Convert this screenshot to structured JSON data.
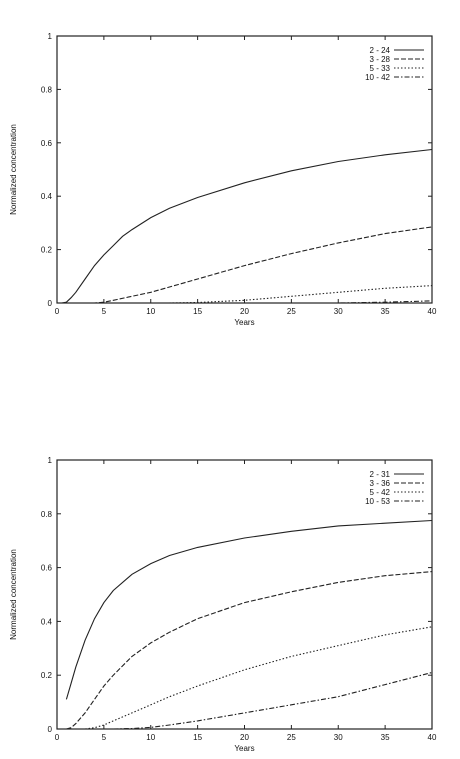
{
  "chart_data": [
    {
      "type": "line",
      "title": "",
      "xlabel": "Years",
      "ylabel": "Normalized concentration",
      "xlim": [
        0,
        40
      ],
      "ylim": [
        0,
        1
      ],
      "xticks": [
        0,
        5,
        10,
        15,
        20,
        25,
        30,
        35,
        40
      ],
      "yticks": [
        0,
        0.2,
        0.4,
        0.6,
        0.8,
        1
      ],
      "ytick_labels": [
        "0",
        "0.2",
        "0.4",
        "0.6",
        "0.8",
        "1"
      ],
      "grid": false,
      "legend_position": "top-right",
      "series": [
        {
          "name": "2 - 24",
          "dash": "solid",
          "x": [
            0,
            0.5,
            1,
            1.5,
            2,
            3,
            4,
            5,
            6,
            7,
            8,
            10,
            12,
            15,
            20,
            25,
            30,
            35,
            40
          ],
          "y": [
            0,
            0,
            0.003,
            0.02,
            0.04,
            0.09,
            0.14,
            0.18,
            0.215,
            0.25,
            0.275,
            0.32,
            0.355,
            0.395,
            0.45,
            0.495,
            0.53,
            0.555,
            0.575
          ]
        },
        {
          "name": "3 - 28",
          "dash": "dashed",
          "x": [
            0,
            4,
            5,
            6,
            8,
            10,
            12,
            15,
            20,
            25,
            30,
            35,
            40
          ],
          "y": [
            0,
            0,
            0.003,
            0.01,
            0.025,
            0.04,
            0.06,
            0.09,
            0.14,
            0.185,
            0.225,
            0.26,
            0.285
          ]
        },
        {
          "name": "5 - 33",
          "dash": "dotted",
          "x": [
            0,
            12,
            15,
            20,
            25,
            30,
            35,
            40
          ],
          "y": [
            0,
            0,
            0.002,
            0.01,
            0.025,
            0.04,
            0.055,
            0.065
          ]
        },
        {
          "name": "10 - 42",
          "dash": "dashdot",
          "x": [
            0,
            30,
            35,
            40
          ],
          "y": [
            0,
            0,
            0.003,
            0.008
          ]
        }
      ]
    },
    {
      "type": "line",
      "title": "",
      "xlabel": "Years",
      "ylabel": "Normalized concentration",
      "xlim": [
        0,
        40
      ],
      "ylim": [
        0,
        1
      ],
      "xticks": [
        0,
        5,
        10,
        15,
        20,
        25,
        30,
        35,
        40
      ],
      "yticks": [
        0,
        0.2,
        0.4,
        0.6,
        0.8,
        1
      ],
      "ytick_labels": [
        "0",
        "0.2",
        "0.4",
        "0.6",
        "0.8",
        "1"
      ],
      "grid": false,
      "legend_position": "top-right",
      "series": [
        {
          "name": "2 - 31",
          "dash": "solid",
          "x": [
            1,
            1.5,
            2,
            3,
            4,
            5,
            6,
            8,
            10,
            12,
            15,
            20,
            25,
            30,
            35,
            40
          ],
          "y": [
            0.11,
            0.17,
            0.23,
            0.33,
            0.41,
            0.47,
            0.515,
            0.575,
            0.615,
            0.645,
            0.675,
            0.71,
            0.735,
            0.755,
            0.765,
            0.775
          ]
        },
        {
          "name": "3 - 36",
          "dash": "dashed",
          "x": [
            1,
            1.5,
            2,
            3,
            4,
            5,
            6,
            8,
            10,
            12,
            15,
            20,
            25,
            30,
            35,
            40
          ],
          "y": [
            0,
            0.005,
            0.02,
            0.06,
            0.11,
            0.16,
            0.2,
            0.27,
            0.32,
            0.36,
            0.41,
            0.47,
            0.51,
            0.545,
            0.57,
            0.585
          ]
        },
        {
          "name": "5 - 42",
          "dash": "dotted",
          "x": [
            3,
            4,
            5,
            6,
            8,
            10,
            12,
            15,
            20,
            25,
            30,
            35,
            40
          ],
          "y": [
            0,
            0.005,
            0.015,
            0.03,
            0.06,
            0.09,
            0.12,
            0.16,
            0.22,
            0.27,
            0.31,
            0.35,
            0.38
          ]
        },
        {
          "name": "10 - 53",
          "dash": "dashdot",
          "x": [
            6,
            8,
            10,
            12,
            15,
            20,
            25,
            30,
            35,
            40
          ],
          "y": [
            0,
            0.002,
            0.006,
            0.015,
            0.03,
            0.06,
            0.09,
            0.12,
            0.165,
            0.21
          ]
        }
      ]
    }
  ]
}
